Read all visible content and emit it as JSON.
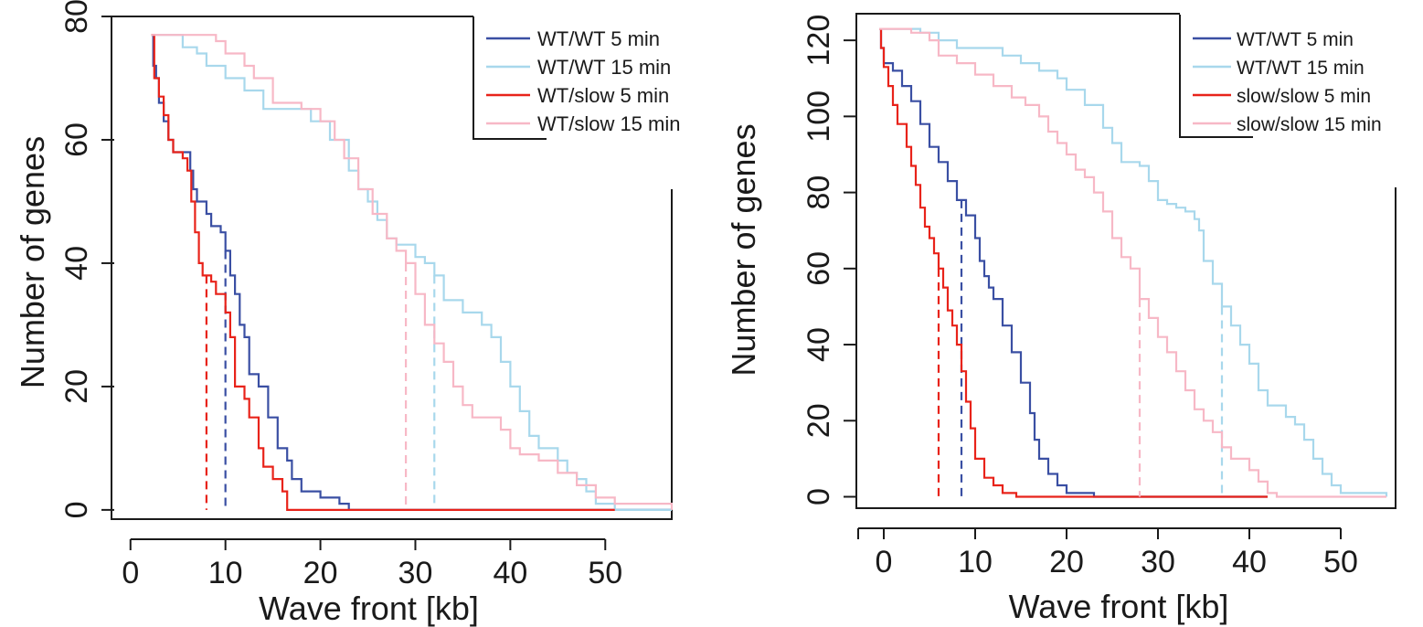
{
  "chart_data": [
    {
      "type": "line",
      "xlabel": "Wave front [kb]",
      "ylabel": "Number of genes",
      "xlim": [
        -2,
        57
      ],
      "ylim": [
        -1.5,
        80
      ],
      "xticks": [
        0,
        10,
        20,
        30,
        40,
        50
      ],
      "yticks": [
        0,
        20,
        40,
        60,
        80
      ],
      "legend_position": "top-right",
      "series": [
        {
          "name": "WT/WT  5 min",
          "color": "#3a4fa3",
          "points": [
            [
              2.2,
              77
            ],
            [
              2.4,
              72
            ],
            [
              2.7,
              70
            ],
            [
              3,
              66
            ],
            [
              3.5,
              63
            ],
            [
              4,
              60
            ],
            [
              4.5,
              58
            ],
            [
              6,
              58
            ],
            [
              6.3,
              55
            ],
            [
              6.6,
              52
            ],
            [
              7,
              50
            ],
            [
              8,
              48
            ],
            [
              8.5,
              46
            ],
            [
              9.5,
              45
            ],
            [
              10,
              42
            ],
            [
              10.5,
              38
            ],
            [
              11,
              35
            ],
            [
              11.5,
              30
            ],
            [
              12,
              28
            ],
            [
              12.5,
              22
            ],
            [
              13.5,
              20
            ],
            [
              14.5,
              15
            ],
            [
              15.5,
              10
            ],
            [
              16.5,
              8
            ],
            [
              17,
              5
            ],
            [
              18,
              3
            ],
            [
              20,
              2
            ],
            [
              22,
              1
            ],
            [
              23,
              0
            ],
            [
              57,
              0
            ]
          ],
          "vline_x": 10
        },
        {
          "name": "WT/WT 15 min",
          "color": "#a8d8ec",
          "points": [
            [
              2.2,
              77
            ],
            [
              4.5,
              77
            ],
            [
              5.5,
              75
            ],
            [
              7,
              74
            ],
            [
              8,
              72
            ],
            [
              10,
              70
            ],
            [
              12,
              68
            ],
            [
              14,
              65
            ],
            [
              17,
              65
            ],
            [
              19,
              63
            ],
            [
              21,
              60
            ],
            [
              23,
              55
            ],
            [
              24,
              52
            ],
            [
              25,
              50
            ],
            [
              26,
              47
            ],
            [
              27,
              44
            ],
            [
              28,
              43
            ],
            [
              30,
              41
            ],
            [
              31,
              40
            ],
            [
              32,
              38
            ],
            [
              33,
              34
            ],
            [
              35,
              32
            ],
            [
              37,
              30
            ],
            [
              38,
              28
            ],
            [
              39,
              24
            ],
            [
              40,
              20
            ],
            [
              41,
              16
            ],
            [
              42,
              12
            ],
            [
              43,
              10
            ],
            [
              45,
              8
            ],
            [
              46,
              6
            ],
            [
              47,
              5
            ],
            [
              48,
              3
            ],
            [
              49,
              1
            ],
            [
              51,
              0
            ],
            [
              57,
              0
            ]
          ],
          "vline_x": 32
        },
        {
          "name": "WT/slow 5 min",
          "color": "#e8231a",
          "points": [
            [
              2.2,
              77
            ],
            [
              2.5,
              70
            ],
            [
              3,
              67
            ],
            [
              3.5,
              64
            ],
            [
              4,
              60
            ],
            [
              4.5,
              58
            ],
            [
              5.5,
              57
            ],
            [
              6,
              55
            ],
            [
              6.4,
              50
            ],
            [
              6.8,
              45
            ],
            [
              7.2,
              40
            ],
            [
              7.6,
              38
            ],
            [
              8.5,
              37
            ],
            [
              9,
              35
            ],
            [
              10,
              32
            ],
            [
              10.5,
              28
            ],
            [
              11,
              20
            ],
            [
              12,
              18
            ],
            [
              12.5,
              15
            ],
            [
              13.5,
              10
            ],
            [
              14,
              7
            ],
            [
              15,
              5
            ],
            [
              16,
              3
            ],
            [
              16.5,
              0
            ],
            [
              51,
              0
            ]
          ],
          "vline_x": 8
        },
        {
          "name": "WT/slow 15 min",
          "color": "#f7b8c6",
          "points": [
            [
              2.2,
              77
            ],
            [
              7,
              77
            ],
            [
              9,
              76
            ],
            [
              10,
              74
            ],
            [
              12,
              72
            ],
            [
              13,
              70
            ],
            [
              15,
              66
            ],
            [
              18,
              65
            ],
            [
              20,
              63
            ],
            [
              21.5,
              60
            ],
            [
              22.5,
              57
            ],
            [
              24,
              52
            ],
            [
              25.5,
              48
            ],
            [
              27,
              44
            ],
            [
              28,
              42
            ],
            [
              29,
              40
            ],
            [
              30,
              35
            ],
            [
              31,
              30
            ],
            [
              32,
              27
            ],
            [
              33,
              24
            ],
            [
              34,
              20
            ],
            [
              35,
              17
            ],
            [
              36,
              15
            ],
            [
              38,
              15
            ],
            [
              39,
              13
            ],
            [
              40,
              10
            ],
            [
              41,
              9
            ],
            [
              43,
              8
            ],
            [
              45,
              6
            ],
            [
              47,
              4
            ],
            [
              49,
              2
            ],
            [
              51,
              1
            ],
            [
              57,
              0
            ]
          ],
          "vline_x": 29
        }
      ]
    },
    {
      "type": "line",
      "xlabel": "Wave front [kb]",
      "ylabel": "Number of genes",
      "xlim": [
        -3,
        56
      ],
      "ylim": [
        -3,
        127
      ],
      "xticks": [
        0,
        10,
        20,
        30,
        40,
        50
      ],
      "yticks": [
        0,
        20,
        40,
        60,
        80,
        100,
        120
      ],
      "legend_position": "top-right",
      "series": [
        {
          "name": "WT/WT  5 min",
          "color": "#3a4fa3",
          "points": [
            [
              -0.5,
              123
            ],
            [
              -0.3,
              118
            ],
            [
              0,
              114
            ],
            [
              1,
              112
            ],
            [
              2,
              108
            ],
            [
              3,
              104
            ],
            [
              4,
              98
            ],
            [
              5,
              92
            ],
            [
              6,
              88
            ],
            [
              7,
              83
            ],
            [
              8,
              78
            ],
            [
              9,
              74
            ],
            [
              10,
              68
            ],
            [
              10.5,
              62
            ],
            [
              11,
              58
            ],
            [
              11.5,
              55
            ],
            [
              12,
              52
            ],
            [
              13,
              45
            ],
            [
              14,
              38
            ],
            [
              15,
              30
            ],
            [
              16,
              22
            ],
            [
              16.5,
              15
            ],
            [
              17,
              10
            ],
            [
              18,
              6
            ],
            [
              19,
              3
            ],
            [
              20,
              1
            ],
            [
              23,
              0
            ],
            [
              42,
              0
            ]
          ],
          "vline_x": 8.5
        },
        {
          "name": "WT/WT 15 min",
          "color": "#a8d8ec",
          "points": [
            [
              -0.5,
              123
            ],
            [
              1,
              123
            ],
            [
              4,
              122
            ],
            [
              6,
              120
            ],
            [
              8,
              118
            ],
            [
              11,
              118
            ],
            [
              13,
              116
            ],
            [
              15,
              114
            ],
            [
              17,
              112
            ],
            [
              19,
              110
            ],
            [
              20,
              107
            ],
            [
              22,
              103
            ],
            [
              24,
              97
            ],
            [
              25,
              93
            ],
            [
              26,
              88
            ],
            [
              28,
              87
            ],
            [
              29,
              83
            ],
            [
              30,
              78
            ],
            [
              31,
              77
            ],
            [
              32,
              76
            ],
            [
              33,
              75
            ],
            [
              34,
              73
            ],
            [
              34.5,
              70
            ],
            [
              35,
              62
            ],
            [
              36,
              56
            ],
            [
              37,
              50
            ],
            [
              38,
              45
            ],
            [
              39,
              40
            ],
            [
              40,
              35
            ],
            [
              41,
              28
            ],
            [
              42,
              24
            ],
            [
              44,
              21
            ],
            [
              45,
              19
            ],
            [
              46,
              15
            ],
            [
              47,
              10
            ],
            [
              48,
              6
            ],
            [
              49,
              3
            ],
            [
              50,
              1
            ],
            [
              55,
              0
            ]
          ],
          "vline_x": 37
        },
        {
          "name": "slow/slow 5 min",
          "color": "#e8231a",
          "points": [
            [
              -0.5,
              123
            ],
            [
              -0.3,
              118
            ],
            [
              0,
              113
            ],
            [
              0.5,
              108
            ],
            [
              1,
              103
            ],
            [
              1.5,
              98
            ],
            [
              2.5,
              92
            ],
            [
              3,
              87
            ],
            [
              3.5,
              82
            ],
            [
              4,
              76
            ],
            [
              4.5,
              71
            ],
            [
              5,
              68
            ],
            [
              5.5,
              64
            ],
            [
              6,
              60
            ],
            [
              6.5,
              55
            ],
            [
              7,
              49
            ],
            [
              7.5,
              45
            ],
            [
              8,
              40
            ],
            [
              8.5,
              33
            ],
            [
              9,
              25
            ],
            [
              9.5,
              18
            ],
            [
              10,
              10
            ],
            [
              11,
              5
            ],
            [
              12,
              3
            ],
            [
              13,
              1
            ],
            [
              14.5,
              0
            ],
            [
              42,
              0
            ]
          ],
          "vline_x": 6
        },
        {
          "name": "slow/slow 15 min",
          "color": "#f7b8c6",
          "points": [
            [
              -0.5,
              123
            ],
            [
              3,
              122
            ],
            [
              5,
              120
            ],
            [
              6,
              116
            ],
            [
              8,
              114
            ],
            [
              10,
              111
            ],
            [
              12,
              108
            ],
            [
              14,
              105
            ],
            [
              15.5,
              103
            ],
            [
              17,
              100
            ],
            [
              18,
              96
            ],
            [
              19,
              93
            ],
            [
              20,
              90
            ],
            [
              21,
              86
            ],
            [
              22,
              84
            ],
            [
              23,
              80
            ],
            [
              24,
              75
            ],
            [
              25,
              68
            ],
            [
              26,
              63
            ],
            [
              27,
              60
            ],
            [
              28,
              52
            ],
            [
              29,
              47
            ],
            [
              30,
              42
            ],
            [
              31,
              38
            ],
            [
              32,
              33
            ],
            [
              33,
              28
            ],
            [
              34,
              23
            ],
            [
              35,
              20
            ],
            [
              36,
              17
            ],
            [
              37,
              13
            ],
            [
              38,
              10
            ],
            [
              39,
              10
            ],
            [
              40,
              7
            ],
            [
              41,
              4
            ],
            [
              42,
              1
            ],
            [
              43,
              0
            ],
            [
              55,
              0
            ]
          ],
          "vline_x": 28
        }
      ]
    }
  ]
}
